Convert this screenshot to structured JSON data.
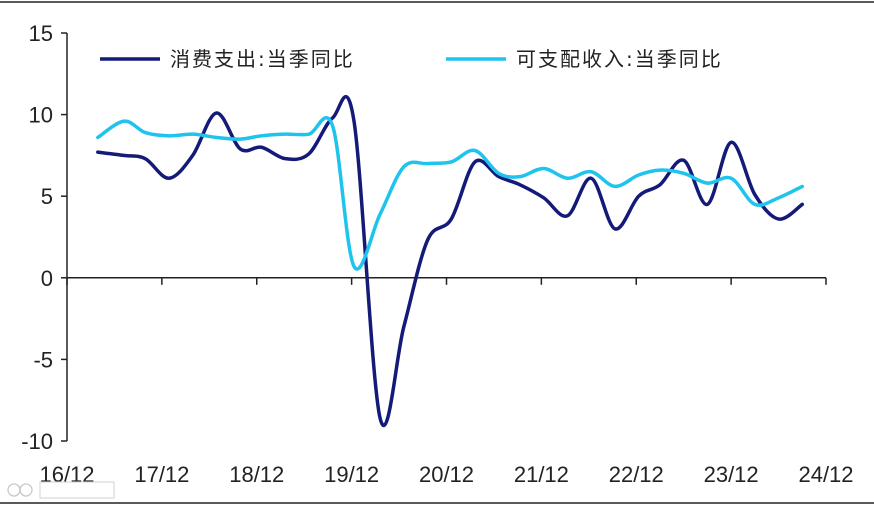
{
  "chart_data": {
    "type": "line",
    "title": "",
    "xlabel": "",
    "ylabel": "",
    "ylim": [
      -10,
      15
    ],
    "yticks": [
      -10,
      -5,
      0,
      5,
      10,
      15
    ],
    "xlim": [
      0,
      32
    ],
    "xticks": [
      {
        "pos": 0,
        "label": "16/12"
      },
      {
        "pos": 4,
        "label": "17/12"
      },
      {
        "pos": 8,
        "label": "18/12"
      },
      {
        "pos": 12,
        "label": "19/12"
      },
      {
        "pos": 16,
        "label": "20/12"
      },
      {
        "pos": 20,
        "label": "21/12"
      },
      {
        "pos": 24,
        "label": "22/12"
      },
      {
        "pos": 28,
        "label": "23/12"
      },
      {
        "pos": 32,
        "label": "24/12"
      }
    ],
    "grid": false,
    "legend_position": "top",
    "series": [
      {
        "name": "消费支出:当季同比",
        "color": "#141a78",
        "values": [
          [
            1.3,
            7.7
          ],
          [
            2.4,
            7.5
          ],
          [
            3.3,
            7.3
          ],
          [
            4.3,
            6.1
          ],
          [
            5.3,
            7.5
          ],
          [
            6.3,
            10.1
          ],
          [
            7.3,
            7.9
          ],
          [
            8.2,
            8.0
          ],
          [
            9.2,
            7.3
          ],
          [
            10.2,
            7.6
          ],
          [
            11.2,
            9.8
          ],
          [
            12.1,
            9.6
          ],
          [
            13.2,
            -8.6
          ],
          [
            14.2,
            -3.0
          ],
          [
            15.2,
            2.3
          ],
          [
            16.2,
            3.6
          ],
          [
            17.2,
            7.1
          ],
          [
            18.2,
            6.2
          ],
          [
            19.1,
            5.7
          ],
          [
            20.1,
            4.9
          ],
          [
            21.1,
            3.8
          ],
          [
            22.1,
            6.1
          ],
          [
            23.1,
            3.0
          ],
          [
            24.1,
            5.0
          ],
          [
            25.0,
            5.7
          ],
          [
            26.0,
            7.2
          ],
          [
            27.0,
            4.5
          ],
          [
            28.0,
            8.3
          ],
          [
            29.0,
            5.1
          ],
          [
            30.0,
            3.6
          ],
          [
            31.0,
            4.5
          ]
        ]
      },
      {
        "name": "可支配收入:当季同比",
        "color": "#1ec4ee",
        "values": [
          [
            1.3,
            8.6
          ],
          [
            2.4,
            9.6
          ],
          [
            3.3,
            8.9
          ],
          [
            4.3,
            8.7
          ],
          [
            5.3,
            8.8
          ],
          [
            6.3,
            8.6
          ],
          [
            7.3,
            8.5
          ],
          [
            8.2,
            8.7
          ],
          [
            9.2,
            8.8
          ],
          [
            10.2,
            8.8
          ],
          [
            11.2,
            9.3
          ],
          [
            12.1,
            0.7
          ],
          [
            13.2,
            3.9
          ],
          [
            14.2,
            6.8
          ],
          [
            15.2,
            7.0
          ],
          [
            16.2,
            7.1
          ],
          [
            17.2,
            7.8
          ],
          [
            18.2,
            6.4
          ],
          [
            19.1,
            6.2
          ],
          [
            20.1,
            6.7
          ],
          [
            21.1,
            6.1
          ],
          [
            22.1,
            6.5
          ],
          [
            23.1,
            5.6
          ],
          [
            24.1,
            6.3
          ],
          [
            25.0,
            6.6
          ],
          [
            26.0,
            6.4
          ],
          [
            27.0,
            5.8
          ],
          [
            28.0,
            6.1
          ],
          [
            29.0,
            4.5
          ],
          [
            30.0,
            4.9
          ],
          [
            31.0,
            5.6
          ]
        ]
      }
    ]
  }
}
